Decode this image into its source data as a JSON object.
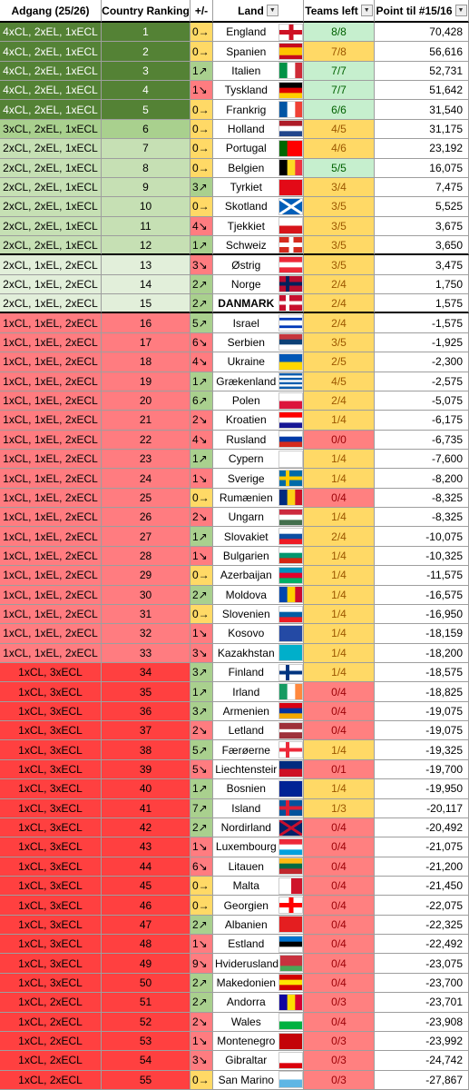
{
  "table": {
    "headers": [
      "Adgang (25/26)",
      "Country Ranking",
      "+/-",
      "Land",
      "Teams left",
      "Point til #15/16"
    ],
    "rows": [
      [
        "4xCL, 2xEL, 1xECL",
        1,
        "0→",
        "England",
        "8/8",
        "70,428"
      ],
      [
        "4xCL, 2xEL, 1xECL",
        2,
        "0→",
        "Spanien",
        "7/8",
        "56,616"
      ],
      [
        "4xCL, 2xEL, 1xECL",
        3,
        "1↗",
        "Italien",
        "7/7",
        "52,731"
      ],
      [
        "4xCL, 2xEL, 1xECL",
        4,
        "1↘",
        "Tyskland",
        "7/7",
        "51,642"
      ],
      [
        "4xCL, 2xEL, 1xECL",
        5,
        "0→",
        "Frankrig",
        "6/6",
        "31,540"
      ],
      [
        "3xCL, 2xEL, 1xECL",
        6,
        "0→",
        "Holland",
        "4/5",
        "31,175"
      ],
      [
        "2xCL, 2xEL, 1xECL",
        7,
        "0→",
        "Portugal",
        "4/6",
        "23,192"
      ],
      [
        "2xCL, 2xEL, 1xECL",
        8,
        "0→",
        "Belgien",
        "5/5",
        "16,075"
      ],
      [
        "2xCL, 2xEL, 1xECL",
        9,
        "3↗",
        "Tyrkiet",
        "3/4",
        "7,475"
      ],
      [
        "2xCL, 2xEL, 1xECL",
        10,
        "0→",
        "Skotland",
        "3/5",
        "5,525"
      ],
      [
        "2xCL, 2xEL, 1xECL",
        11,
        "4↘",
        "Tjekkiet",
        "3/5",
        "3,675"
      ],
      [
        "2xCL, 2xEL, 1xECL",
        12,
        "1↗",
        "Schweiz",
        "3/5",
        "3,650"
      ],
      [
        "2xCL, 1xEL, 2xECL",
        13,
        "3↘",
        "Østrig",
        "3/5",
        "3,475"
      ],
      [
        "2xCL, 1xEL, 2xECL",
        14,
        "2↗",
        "Norge",
        "2/4",
        "1,750"
      ],
      [
        "2xCL, 1xEL, 2xECL",
        15,
        "2↗",
        "DANMARK",
        "2/4",
        "1,575"
      ],
      [
        "1xCL, 1xEL, 2xECL",
        16,
        "5↗",
        "Israel",
        "2/4",
        "-1,575"
      ],
      [
        "1xCL, 1xEL, 2xECL",
        17,
        "6↘",
        "Serbien",
        "3/5",
        "-1,925"
      ],
      [
        "1xCL, 1xEL, 2xECL",
        18,
        "4↘",
        "Ukraine",
        "2/5",
        "-2,300"
      ],
      [
        "1xCL, 1xEL, 2xECL",
        19,
        "1↗",
        "Grækenland",
        "4/5",
        "-2,575"
      ],
      [
        "1xCL, 1xEL, 2xECL",
        20,
        "6↗",
        "Polen",
        "2/4",
        "-5,075"
      ],
      [
        "1xCL, 1xEL, 2xECL",
        21,
        "2↘",
        "Kroatien",
        "1/4",
        "-6,175"
      ],
      [
        "1xCL, 1xEL, 2xECL",
        22,
        "4↘",
        "Rusland",
        "0/0",
        "-6,735"
      ],
      [
        "1xCL, 1xEL, 2xECL",
        23,
        "1↗",
        "Cypern",
        "1/4",
        "-7,600"
      ],
      [
        "1xCL, 1xEL, 2xECL",
        24,
        "1↘",
        "Sverige",
        "1/4",
        "-8,200"
      ],
      [
        "1xCL, 1xEL, 2xECL",
        25,
        "0→",
        "Rumænien",
        "0/4",
        "-8,325"
      ],
      [
        "1xCL, 1xEL, 2xECL",
        26,
        "2↘",
        "Ungarn",
        "1/4",
        "-8,325"
      ],
      [
        "1xCL, 1xEL, 2xECL",
        27,
        "1↗",
        "Slovakiet",
        "2/4",
        "-10,075"
      ],
      [
        "1xCL, 1xEL, 2xECL",
        28,
        "1↘",
        "Bulgarien",
        "1/4",
        "-10,325"
      ],
      [
        "1xCL, 1xEL, 2xECL",
        29,
        "0→",
        "Azerbaijan",
        "1/4",
        "-11,575"
      ],
      [
        "1xCL, 1xEL, 2xECL",
        30,
        "2↗",
        "Moldova",
        "1/4",
        "-16,575"
      ],
      [
        "1xCL, 1xEL, 2xECL",
        31,
        "0→",
        "Slovenien",
        "1/4",
        "-16,950"
      ],
      [
        "1xCL, 1xEL, 2xECL",
        32,
        "1↘",
        "Kosovo",
        "1/4",
        "-18,159"
      ],
      [
        "1xCL, 1xEL, 2xECL",
        33,
        "3↘",
        "Kazakhstan",
        "1/4",
        "-18,200"
      ],
      [
        "1xCL, 3xECL",
        34,
        "3↗",
        "Finland",
        "1/4",
        "-18,575"
      ],
      [
        "1xCL, 3xECL",
        35,
        "1↗",
        "Irland",
        "0/4",
        "-18,825"
      ],
      [
        "1xCL, 3xECL",
        36,
        "3↗",
        "Armenien",
        "0/4",
        "-19,075"
      ],
      [
        "1xCL, 3xECL",
        37,
        "2↘",
        "Letland",
        "0/4",
        "-19,075"
      ],
      [
        "1xCL, 3xECL",
        38,
        "5↗",
        "Færøerne",
        "1/4",
        "-19,325"
      ],
      [
        "1xCL, 3xECL",
        39,
        "5↘",
        "Liechtensteir",
        "0/1",
        "-19,700"
      ],
      [
        "1xCL, 3xECL",
        40,
        "1↗",
        "Bosnien",
        "1/4",
        "-19,950"
      ],
      [
        "1xCL, 3xECL",
        41,
        "7↗",
        "Island",
        "1/3",
        "-20,117"
      ],
      [
        "1xCL, 3xECL",
        42,
        "2↗",
        "Nordirland",
        "0/4",
        "-20,492"
      ],
      [
        "1xCL, 3xECL",
        43,
        "1↘",
        "Luxembourg",
        "0/4",
        "-21,075"
      ],
      [
        "1xCL, 3xECL",
        44,
        "6↘",
        "Litauen",
        "0/4",
        "-21,200"
      ],
      [
        "1xCL, 3xECL",
        45,
        "0→",
        "Malta",
        "0/4",
        "-21,450"
      ],
      [
        "1xCL, 3xECL",
        46,
        "0→",
        "Georgien",
        "0/4",
        "-22,075"
      ],
      [
        "1xCL, 3xECL",
        47,
        "2↗",
        "Albanien",
        "0/4",
        "-22,325"
      ],
      [
        "1xCL, 3xECL",
        48,
        "1↘",
        "Estland",
        "0/4",
        "-22,492"
      ],
      [
        "1xCL, 3xECL",
        49,
        "9↘",
        "Hviderusland",
        "0/4",
        "-23,075"
      ],
      [
        "1xCL, 3xECL",
        50,
        "2↗",
        "Makedonien",
        "0/4",
        "-23,700"
      ],
      [
        "1xCL, 2xECL",
        51,
        "2↗",
        "Andorra",
        "0/3",
        "-23,701"
      ],
      [
        "1xCL, 2xECL",
        52,
        "2↘",
        "Wales",
        "0/4",
        "-23,908"
      ],
      [
        "1xCL, 2xECL",
        53,
        "1↘",
        "Montenegro",
        "0/3",
        "-23,992"
      ],
      [
        "1xCL, 2xECL",
        54,
        "3↘",
        "Gibraltar",
        "0/3",
        "-24,742"
      ],
      [
        "1xCL, 2xECL",
        55,
        "0→",
        "San Marino",
        "0/3",
        "-27,867"
      ]
    ]
  }
}
